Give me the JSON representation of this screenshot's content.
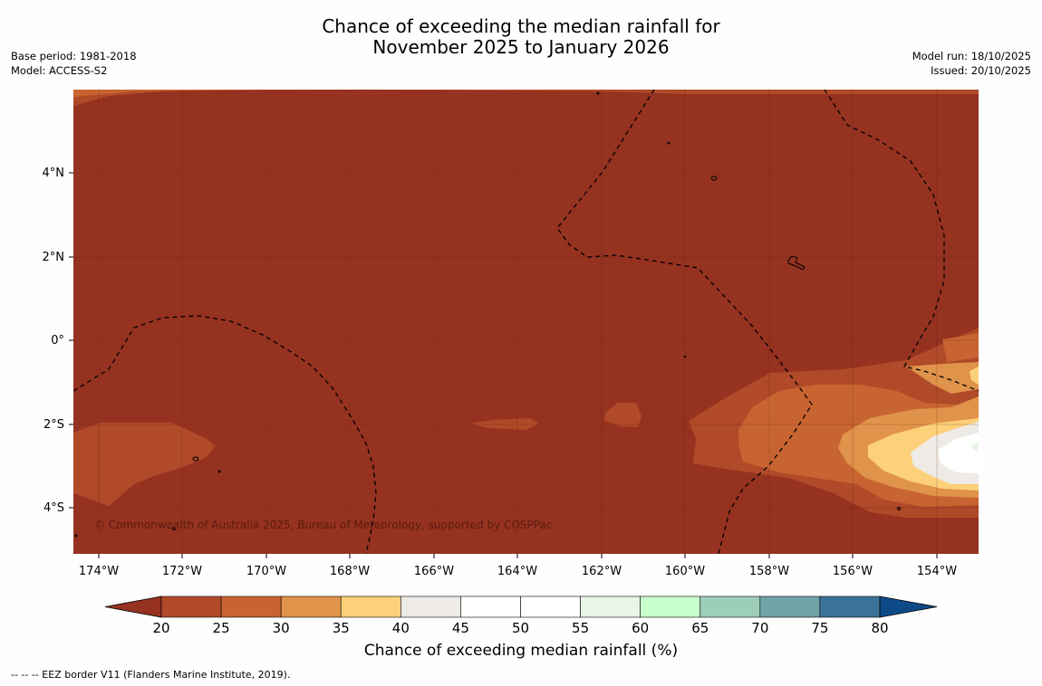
{
  "title_line1": "Chance of exceeding the median rainfall for",
  "title_line2": "November 2025 to January 2026",
  "base_period": "Base period: 1981-2018",
  "model": "Model: ACCESS-S2",
  "model_run": "Model run: 18/10/2025",
  "issued": "Issued: 20/10/2025",
  "copyright": "© Commonwealth of Australia 2025, Bureau of Meteorology, supported by COSPPac",
  "lon_labels": [
    "174°W",
    "172°W",
    "170°W",
    "168°W",
    "166°W",
    "164°W",
    "162°W",
    "160°W",
    "158°W",
    "156°W",
    "154°W"
  ],
  "lat_labels": [
    "4°N",
    "2°N",
    "0°",
    "2°S",
    "4°S"
  ],
  "colorbar": {
    "label": "Chance of exceeding median rainfall (%)",
    "ticks": [
      "20",
      "25",
      "30",
      "35",
      "40",
      "45",
      "50",
      "55",
      "60",
      "65",
      "70",
      "75",
      "80"
    ],
    "colors": [
      "#b04a28",
      "#c86432",
      "#e0934a",
      "#fdd07a",
      "#eeebe6",
      "#ffffff",
      "#ffffff",
      "#e9f6e7",
      "#c8ffcb",
      "#9dcfb8",
      "#6fa3a6",
      "#3a7398"
    ],
    "under_color": "#963220",
    "over_color": "#0e4a87"
  },
  "footnote": "--  --  -- EEZ border V11 (Flanders Marine Institute, 2019)."
}
